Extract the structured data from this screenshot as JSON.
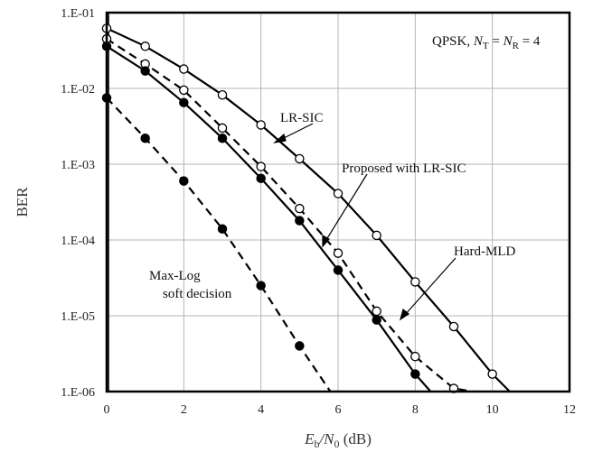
{
  "chart_data": {
    "type": "line",
    "xlabel": {
      "main": "E",
      "sub1": "b",
      "slash": "/N",
      "sub2": "0",
      "unit": " (dB)"
    },
    "ylabel": "BER",
    "xlim": [
      0,
      12
    ],
    "ylim_log10": [
      -6,
      -1
    ],
    "yscale": "log",
    "grid": true,
    "x_ticks": [
      "0",
      "2",
      "4",
      "6",
      "8",
      "10",
      "12"
    ],
    "y_ticks": [
      "1.E-01",
      "1.E-02",
      "1.E-03",
      "1.E-04",
      "1.E-05",
      "1.E-06"
    ],
    "title_annotation": {
      "prefix": "QPSK, ",
      "n1": "N",
      "s1": "T",
      "eq": " = ",
      "n2": "N",
      "s2": "R",
      "tail": " = 4"
    },
    "annotations": {
      "lr_sic": "LR-SIC",
      "proposed": "Proposed with LR-SIC",
      "hard_mld": "Hard-MLD",
      "maxlog_line1": "Max-Log",
      "maxlog_line2": "soft decision"
    },
    "series": [
      {
        "style": "solid",
        "marker": "open",
        "x": [
          0,
          1,
          2,
          3,
          4,
          5,
          6,
          7,
          8,
          9,
          10,
          10.45
        ],
        "y": [
          0.062,
          0.036,
          0.018,
          0.0082,
          0.0033,
          0.00118,
          0.00041,
          0.000115,
          2.8e-05,
          7.2e-06,
          1.7e-06,
          1e-06
        ],
        "marker_count": 11
      },
      {
        "style": "dashed",
        "marker": "open",
        "x": [
          0,
          1,
          2,
          3,
          4,
          5,
          6,
          7,
          8,
          9,
          9.5
        ],
        "y": [
          0.045,
          0.021,
          0.0095,
          0.003,
          0.00093,
          0.00026,
          6.7e-05,
          1.15e-05,
          2.9e-06,
          1.1e-06,
          1e-06
        ],
        "marker_count": 10
      },
      {
        "style": "solid",
        "marker": "filled",
        "x": [
          0,
          1,
          2,
          3,
          4,
          5,
          6,
          7,
          8,
          8.4
        ],
        "y": [
          0.036,
          0.017,
          0.0065,
          0.0022,
          0.00065,
          0.00018,
          4e-05,
          8.8e-06,
          1.7e-06,
          1e-06
        ],
        "marker_count": 9
      },
      {
        "style": "dashed",
        "marker": "filled",
        "x": [
          0,
          1,
          2,
          3,
          4,
          5,
          5.8
        ],
        "y": [
          0.0075,
          0.0022,
          0.0006,
          0.00014,
          2.5e-05,
          4e-06,
          1e-06
        ],
        "marker_count": 6
      }
    ]
  }
}
